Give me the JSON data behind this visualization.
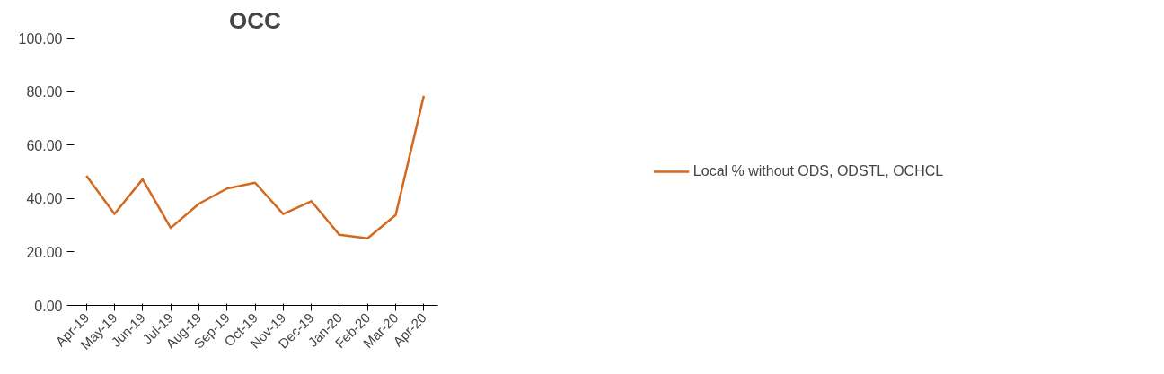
{
  "chart_data": {
    "type": "line",
    "title": "OCC",
    "categories": [
      "Apr-19",
      "May-19",
      "Jun-19",
      "Jul-19",
      "Aug-19",
      "Sep-19",
      "Oct-19",
      "Nov-19",
      "Dec-19",
      "Jan-20",
      "Feb-20",
      "Mar-20",
      "Apr-20"
    ],
    "series": [
      {
        "name": "Local % without ODS, ODSTL, OCHCL",
        "color": "#d2691e",
        "values": [
          48.5,
          34.2,
          47.2,
          29.0,
          38.0,
          43.7,
          45.9,
          34.2,
          39.0,
          26.4,
          25.1,
          33.8,
          78.4
        ]
      }
    ],
    "ylim": [
      0,
      100
    ],
    "yticks": [
      {
        "value": 0,
        "label": "0.00"
      },
      {
        "value": 20,
        "label": "20.00"
      },
      {
        "value": 40,
        "label": "40.00"
      },
      {
        "value": 60,
        "label": "60.00"
      },
      {
        "value": 80,
        "label": "80.00"
      },
      {
        "value": 100,
        "label": "100.00"
      }
    ],
    "grid": false,
    "legend": "right",
    "marker": "none",
    "line_style": "solid"
  }
}
